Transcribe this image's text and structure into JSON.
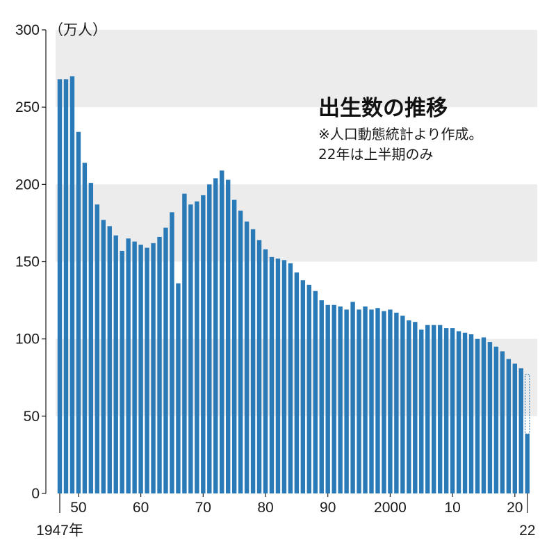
{
  "chart_data": {
    "type": "bar",
    "title": "出生数の推移",
    "notes": [
      "※人口動態統計より作成。",
      "22年は上半期のみ"
    ],
    "unit_label": "（万人）",
    "ylim": [
      0,
      300
    ],
    "yticks": [
      "0",
      "50",
      "100",
      "150",
      "200",
      "250",
      "300"
    ],
    "x_tick_labels": [
      {
        "year": 1950,
        "label": "50"
      },
      {
        "year": 1960,
        "label": "60"
      },
      {
        "year": 1970,
        "label": "70"
      },
      {
        "year": 1980,
        "label": "80"
      },
      {
        "year": 1990,
        "label": "90"
      },
      {
        "year": 2000,
        "label": "2000"
      },
      {
        "year": 2010,
        "label": "10"
      },
      {
        "year": 2020,
        "label": "20"
      }
    ],
    "x_start_label": "1947年",
    "x_end_label": "22",
    "years": [
      1947,
      1948,
      1949,
      1950,
      1951,
      1952,
      1953,
      1954,
      1955,
      1956,
      1957,
      1958,
      1959,
      1960,
      1961,
      1962,
      1963,
      1964,
      1965,
      1966,
      1967,
      1968,
      1969,
      1970,
      1971,
      1972,
      1973,
      1974,
      1975,
      1976,
      1977,
      1978,
      1979,
      1980,
      1981,
      1982,
      1983,
      1984,
      1985,
      1986,
      1987,
      1988,
      1989,
      1990,
      1991,
      1992,
      1993,
      1994,
      1995,
      1996,
      1997,
      1998,
      1999,
      2000,
      2001,
      2002,
      2003,
      2004,
      2005,
      2006,
      2007,
      2008,
      2009,
      2010,
      2011,
      2012,
      2013,
      2014,
      2015,
      2016,
      2017,
      2018,
      2019,
      2020,
      2021,
      2022
    ],
    "values": [
      268,
      268,
      270,
      234,
      214,
      201,
      187,
      177,
      173,
      167,
      157,
      165,
      163,
      161,
      159,
      162,
      166,
      172,
      182,
      136,
      194,
      187,
      189,
      193,
      200,
      204,
      209,
      203,
      190,
      183,
      176,
      171,
      164,
      158,
      153,
      152,
      151,
      149,
      143,
      138,
      135,
      131,
      125,
      122,
      122,
      121,
      119,
      124,
      119,
      121,
      119,
      120,
      118,
      119,
      117,
      115,
      112,
      111,
      106,
      109,
      109,
      109,
      107,
      107,
      105,
      104,
      103,
      100,
      101,
      98,
      95,
      92,
      87,
      84,
      81,
      38.5
    ],
    "dashed_outline_value": 77,
    "dashed_outline_year": 2022,
    "colors": {
      "bar": "#2a7ab8",
      "band": "#ececec",
      "text": "#1a1a1a",
      "dashed": "#2a7ab8"
    }
  }
}
